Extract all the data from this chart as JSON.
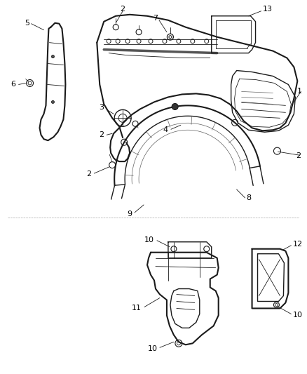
{
  "background_color": "#ffffff",
  "line_color": "#1a1a1a",
  "figsize": [
    4.38,
    5.33
  ],
  "dpi": 100,
  "gray": "#888888",
  "lightgray": "#cccccc"
}
